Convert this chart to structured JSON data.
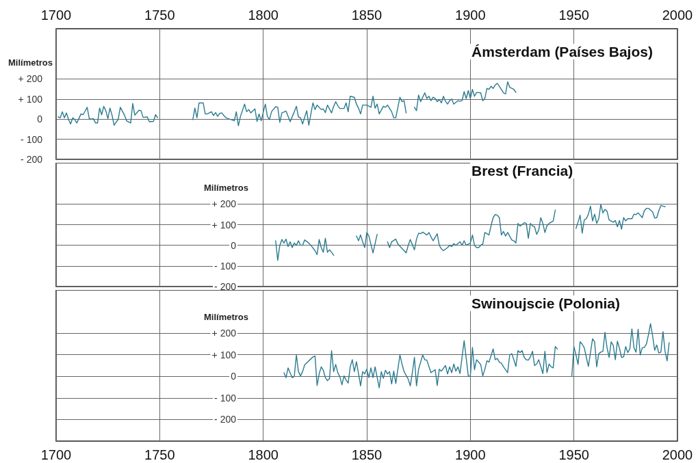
{
  "chart_data": [
    {
      "type": "line",
      "title": "Ámsterdam (Países Bajos)",
      "ylabel": "Milímetros",
      "xlim": [
        1700,
        2000
      ],
      "xticks": [
        1700,
        1750,
        1800,
        1850,
        1900,
        1950,
        2000
      ],
      "x2lim": [
        1700,
        2000
      ],
      "x2ticks": [
        1700,
        1750,
        1800,
        1850,
        1900,
        1950,
        2000
      ],
      "ylim": [
        -200,
        450
      ],
      "yticks": [
        {
          "value": 200,
          "label": "+ 200"
        },
        {
          "value": 100,
          "label": "+ 100"
        },
        {
          "value": 0,
          "label": "0"
        },
        {
          "value": -100,
          "label": "- 100"
        },
        {
          "value": -200,
          "label": "- 200"
        }
      ],
      "grid": true,
      "tick_labels": "y",
      "series": [
        {
          "color": "#2b7a8f",
          "x": [
            1701,
            1702,
            1703,
            1704,
            1705,
            1706,
            1707,
            1708,
            1709,
            1710,
            1711,
            1712,
            1713,
            1714,
            1715,
            1716,
            1717,
            1718,
            1719,
            1720,
            1721,
            1722,
            1723,
            1724,
            1725,
            1726,
            1727,
            1728,
            1730,
            1731,
            1733,
            1734,
            1736,
            1737,
            1738,
            1740,
            1741,
            1742,
            1744,
            1745,
            1747,
            1748,
            1749,
            1758,
            1766,
            1767,
            1768,
            1769,
            1771,
            1772,
            1773,
            1775,
            1776,
            1777,
            1778,
            1779,
            1780,
            1781,
            1782,
            1783,
            1785,
            1786,
            1787,
            1788,
            1789,
            1791,
            1792,
            1793,
            1794,
            1796,
            1797,
            1798,
            1799,
            1801,
            1802,
            1803,
            1804,
            1806,
            1807,
            1808,
            1809,
            1811,
            1812,
            1813,
            1815,
            1816,
            1817,
            1818,
            1819,
            1821,
            1822,
            1824,
            1825,
            1826,
            1828,
            1829,
            1830,
            1831,
            1833,
            1834,
            1835,
            1836,
            1837,
            1839,
            1840,
            1841,
            1842,
            1844,
            1845,
            1846,
            1847,
            1848,
            1850,
            1852,
            1853,
            1854,
            1855,
            1856,
            1858,
            1859,
            1860,
            1862,
            1863,
            1864,
            1866,
            1867,
            1868,
            1869,
            1871,
            1873,
            1874,
            1875,
            1876,
            1878,
            1879,
            1880,
            1881,
            1882,
            1883,
            1884,
            1885,
            1886,
            1887,
            1888,
            1889,
            1890,
            1891,
            1892,
            1894,
            1895,
            1896,
            1897,
            1898,
            1899,
            1900,
            1901,
            1902,
            1903,
            1905,
            1906,
            1907,
            1908,
            1909,
            1910,
            1911,
            1912,
            1913,
            1914,
            1916,
            1917,
            1918,
            1919,
            1921,
            1922
          ],
          "values": [
            11,
            7,
            37,
            7,
            31,
            -2,
            -24,
            7,
            -2,
            -19,
            3,
            26,
            22,
            40,
            59,
            3,
            0,
            3,
            -19,
            -19,
            55,
            22,
            64,
            42,
            3,
            55,
            20,
            -30,
            0,
            59,
            20,
            -8,
            -19,
            78,
            20,
            44,
            42,
            9,
            11,
            -13,
            -11,
            22,
            7,
            null,
            -2,
            55,
            7,
            81,
            81,
            26,
            26,
            37,
            18,
            33,
            14,
            29,
            31,
            18,
            7,
            3,
            -4,
            -8,
            37,
            -33,
            14,
            75,
            37,
            48,
            31,
            51,
            -11,
            26,
            -8,
            75,
            14,
            -2,
            37,
            62,
            59,
            -16,
            31,
            40,
            14,
            -13,
            37,
            64,
            11,
            7,
            -24,
            42,
            -30,
            81,
            48,
            70,
            48,
            51,
            33,
            70,
            31,
            64,
            87,
            67,
            53,
            53,
            81,
            37,
            114,
            109,
            75,
            55,
            26,
            70,
            70,
            59,
            114,
            55,
            75,
            26,
            64,
            59,
            70,
            37,
            7,
            7,
            109,
            87,
            92,
            31,
            null,
            59,
            42,
            120,
            87,
            131,
            103,
            114,
            92,
            109,
            103,
            87,
            98,
            81,
            114,
            89,
            75,
            92,
            100,
            75,
            92,
            89,
            92,
            137,
            103,
            142,
            103,
            148,
            114,
            133,
            131,
            92,
            103,
            153,
            148,
            164,
            153,
            170,
            178,
            164,
            131,
            125,
            186,
            159,
            148,
            133
          ]
        }
      ]
    },
    {
      "type": "line",
      "title": "Brest (Francia)",
      "ylabel": "Milímetros",
      "xlim": [
        1700,
        2000
      ],
      "xticks": [
        1700,
        1750,
        1800,
        1850,
        1900,
        1950,
        2000
      ],
      "ylim": [
        -200,
        400
      ],
      "yticks": [
        {
          "value": 200,
          "label": "+ 200"
        },
        {
          "value": 100,
          "label": "+ 100"
        },
        {
          "value": 0,
          "label": "0"
        },
        {
          "value": -100,
          "label": "- 100"
        },
        {
          "value": -200,
          "label": "- 200"
        }
      ],
      "grid": true,
      "tick_labels": "y",
      "series": [
        {
          "color": "#2b7a8f",
          "x": [
            1806,
            1807,
            1808,
            1809,
            1810,
            1811,
            1812,
            1813,
            1814,
            1815,
            1816,
            1817,
            1818,
            1819,
            1820,
            1822,
            1823,
            1825,
            1826,
            1827,
            1828,
            1829,
            1830,
            1831,
            1832,
            1833,
            1834,
            1840,
            1845,
            1846,
            1847,
            1848,
            1849,
            1850,
            1851,
            1853,
            1855,
            1857,
            1860,
            1861,
            1862,
            1864,
            1865,
            1867,
            1869,
            1870,
            1871,
            1873,
            1874,
            1875,
            1876,
            1877,
            1879,
            1880,
            1881,
            1882,
            1884,
            1885,
            1886,
            1887,
            1889,
            1890,
            1891,
            1892,
            1893,
            1895,
            1896,
            1897,
            1898,
            1900,
            1901,
            1902,
            1903,
            1904,
            1905,
            1906,
            1907,
            1909,
            1910,
            1911,
            1912,
            1913,
            1914,
            1915,
            1916,
            1917,
            1918,
            1920,
            1921,
            1922,
            1923,
            1924,
            1925,
            1926,
            1927,
            1928,
            1929,
            1930,
            1931,
            1932,
            1933,
            1934,
            1935,
            1936,
            1937,
            1938,
            1940,
            1941,
            1946,
            1951,
            1952,
            1953,
            1954,
            1955,
            1956,
            1957,
            1958,
            1959,
            1960,
            1961,
            1962,
            1963,
            1964,
            1965,
            1966,
            1967,
            1969,
            1970,
            1971,
            1972,
            1973,
            1974,
            1975,
            1976,
            1978,
            1979,
            1980,
            1981,
            1982,
            1983,
            1984,
            1985,
            1986,
            1988,
            1989,
            1990,
            1991,
            1992,
            1993,
            1994
          ],
          "values": [
            22,
            -73,
            0,
            28,
            11,
            30,
            -6,
            17,
            -11,
            11,
            0,
            22,
            0,
            0,
            26,
            11,
            0,
            -26,
            -45,
            28,
            -11,
            -34,
            34,
            -34,
            -22,
            -34,
            -48,
            null,
            45,
            22,
            50,
            17,
            -11,
            62,
            45,
            -37,
            53,
            null,
            17,
            -11,
            17,
            30,
            6,
            -15,
            -37,
            0,
            28,
            -22,
            30,
            59,
            56,
            64,
            50,
            62,
            41,
            22,
            56,
            0,
            -17,
            -26,
            -11,
            0,
            -6,
            8,
            0,
            17,
            0,
            22,
            0,
            11,
            50,
            0,
            -11,
            -11,
            0,
            6,
            62,
            50,
            95,
            134,
            149,
            146,
            134,
            50,
            67,
            45,
            62,
            26,
            22,
            11,
            106,
            93,
            101,
            109,
            106,
            34,
            106,
            95,
            90,
            53,
            73,
            134,
            106,
            62,
            95,
            106,
            118,
            171,
            null,
            82,
            112,
            146,
            59,
            123,
            129,
            151,
            190,
            118,
            151,
            106,
            129,
            198,
            157,
            174,
            165,
            123,
            112,
            120,
            90,
            120,
            78,
            134,
            118,
            129,
            129,
            151,
            149,
            157,
            146,
            134,
            168,
            179,
            179,
            162,
            132,
            134,
            168,
            193,
            190,
            187
          ]
        }
      ]
    },
    {
      "type": "line",
      "title": "Swinoujscie (Polonia)",
      "ylabel": "Milímetros",
      "xlim": [
        1700,
        2000
      ],
      "xticks": [
        1700,
        1750,
        1800,
        1850,
        1900,
        1950,
        2000
      ],
      "ylim": [
        -300,
        400
      ],
      "yticks": [
        {
          "value": 200,
          "label": "+ 200"
        },
        {
          "value": 100,
          "label": "+ 100"
        },
        {
          "value": 0,
          "label": "0"
        },
        {
          "value": -100,
          "label": "- 100"
        },
        {
          "value": -200,
          "label": "- 200"
        }
      ],
      "grid": true,
      "series": [
        {
          "color": "#2b7a8f",
          "x": [
            1810,
            1811,
            1812,
            1814,
            1815,
            1816,
            1817,
            1818,
            1819,
            1820,
            1824,
            1825,
            1826,
            1827,
            1828,
            1829,
            1830,
            1831,
            1832,
            1833,
            1834,
            1835,
            1836,
            1837,
            1838,
            1839,
            1840,
            1841,
            1842,
            1843,
            1844,
            1845,
            1846,
            1847,
            1848,
            1849,
            1850,
            1851,
            1852,
            1853,
            1854,
            1856,
            1857,
            1858,
            1859,
            1860,
            1861,
            1862,
            1863,
            1864,
            1866,
            1867,
            1868,
            1870,
            1871,
            1872,
            1873,
            1874,
            1875,
            1877,
            1878,
            1879,
            1881,
            1882,
            1883,
            1884,
            1885,
            1886,
            1888,
            1889,
            1890,
            1891,
            1892,
            1893,
            1894,
            1895,
            1897,
            1899,
            1900,
            1901,
            1902,
            1903,
            1905,
            1906,
            1907,
            1908,
            1909,
            1911,
            1912,
            1913,
            1914,
            1915,
            1916,
            1918,
            1919,
            1920,
            1921,
            1922,
            1923,
            1924,
            1925,
            1926,
            1927,
            1928,
            1929,
            1930,
            1931,
            1932,
            1933,
            1934,
            1935,
            1936,
            1937,
            1938,
            1939,
            1940,
            1941,
            1942,
            1945,
            1949,
            1950,
            1951,
            1952,
            1953,
            1954,
            1955,
            1956,
            1957,
            1959,
            1960,
            1961,
            1962,
            1963,
            1964,
            1965,
            1966,
            1967,
            1968,
            1969,
            1970,
            1971,
            1972,
            1973,
            1974,
            1975,
            1976,
            1977,
            1978,
            1979,
            1980,
            1981,
            1982,
            1983,
            1984,
            1985,
            1986,
            1987,
            1988,
            1989,
            1990,
            1991,
            1992,
            1993,
            1994,
            1995,
            1996
          ],
          "values": [
            17,
            -6,
            39,
            -6,
            0,
            99,
            22,
            2,
            22,
            53,
            90,
            94,
            -42,
            11,
            44,
            28,
            -6,
            -20,
            -11,
            119,
            22,
            55,
            17,
            -2,
            -39,
            2,
            -17,
            -31,
            44,
            77,
            22,
            68,
            13,
            -44,
            22,
            11,
            33,
            -6,
            39,
            -6,
            44,
            -53,
            22,
            -9,
            28,
            11,
            22,
            -35,
            24,
            -33,
            99,
            57,
            22,
            -13,
            -44,
            17,
            88,
            -44,
            33,
            99,
            77,
            75,
            17,
            24,
            31,
            -42,
            33,
            24,
            50,
            11,
            44,
            17,
            57,
            24,
            44,
            13,
            165,
            2,
            0,
            134,
            31,
            77,
            55,
            2,
            33,
            72,
            66,
            127,
            77,
            83,
            66,
            61,
            44,
            17,
            99,
            105,
            77,
            46,
            119,
            110,
            119,
            88,
            77,
            75,
            90,
            116,
            50,
            57,
            77,
            46,
            13,
            116,
            17,
            57,
            44,
            39,
            138,
            127,
            null,
            2,
            138,
            99,
            55,
            160,
            149,
            132,
            88,
            46,
            174,
            160,
            44,
            105,
            112,
            116,
            204,
            132,
            88,
            160,
            143,
            77,
            163,
            130,
            88,
            90,
            138,
            110,
            127,
            220,
            132,
            112,
            218,
            99,
            132,
            134,
            149,
            193,
            244,
            187,
            121,
            145,
            108,
            112,
            207,
            116,
            72,
            156
          ]
        }
      ]
    }
  ]
}
